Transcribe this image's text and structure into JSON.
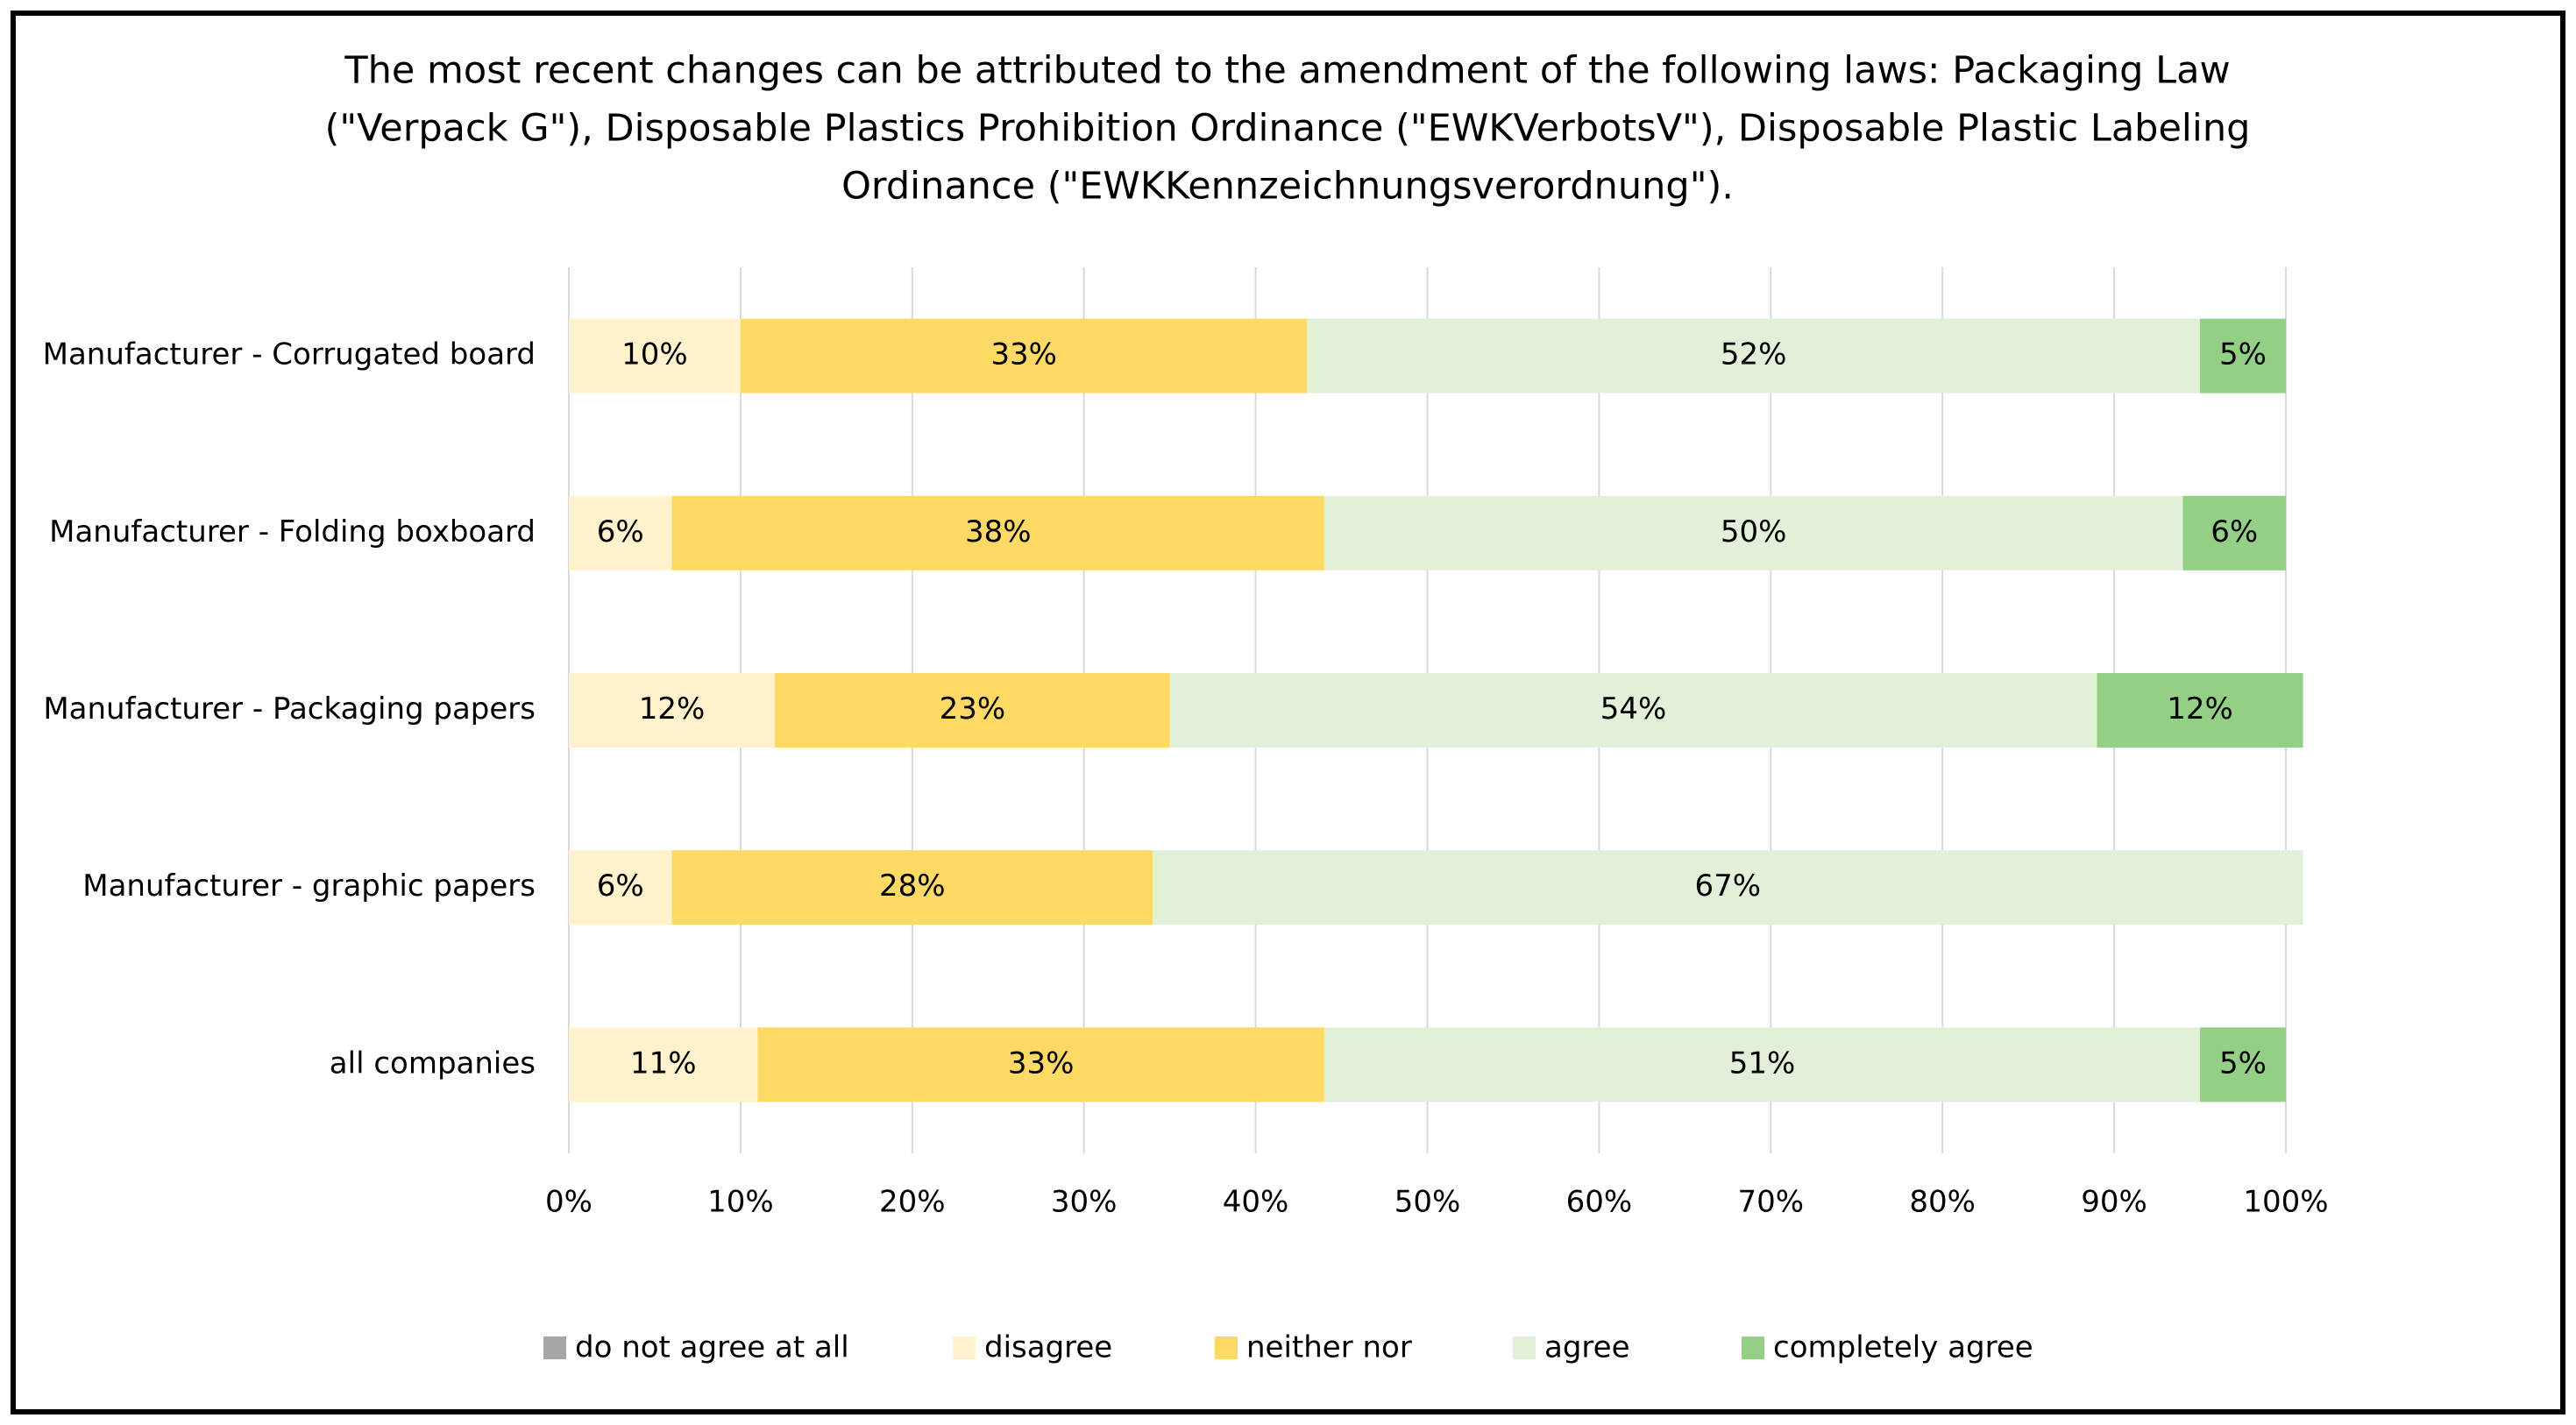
{
  "chart_data": {
    "type": "stacked-bar-horizontal",
    "title": [
      "The most recent changes can be attributed to the amendment of the following laws:  Packaging Law",
      "(\"Verpack G\"), Disposable Plastics Prohibition Ordinance (\"EWKVerbotsV\"), Disposable Plastic Labeling",
      "Ordinance (\"EWKKennzeichnungsverordnung\")."
    ],
    "categories": [
      "Manufacturer - Corrugated board",
      "Manufacturer - Folding boxboard",
      "Manufacturer - Packaging papers",
      "Manufacturer - graphic papers",
      "all companies"
    ],
    "series": [
      {
        "name": "do not agree at all",
        "color": "#a6a6a6",
        "values": [
          0,
          0,
          0,
          0,
          0
        ],
        "value_labels": [
          null,
          null,
          null,
          null,
          null
        ]
      },
      {
        "name": "disagree",
        "color": "#fff2cc",
        "values": [
          10,
          6,
          12,
          6,
          11
        ],
        "value_labels": [
          "10%",
          "6%",
          "12%",
          "6%",
          "11%"
        ]
      },
      {
        "name": "neither nor",
        "color": "#ffd966",
        "values": [
          33,
          38,
          23,
          28,
          33
        ],
        "value_labels": [
          "33%",
          "38%",
          "23%",
          "28%",
          "33%"
        ]
      },
      {
        "name": "agree",
        "color": "#e2f0d9",
        "values": [
          52,
          50,
          54,
          67,
          51
        ],
        "value_labels": [
          "52%",
          "50%",
          "54%",
          "67%",
          "51%"
        ]
      },
      {
        "name": "completely agree",
        "color": "#93d086",
        "values": [
          5,
          6,
          12,
          0,
          5
        ],
        "value_labels": [
          "5%",
          "6%",
          "12%",
          null,
          "5%"
        ]
      }
    ],
    "xlim": [
      0,
      100
    ],
    "xticks": [
      {
        "value": 0,
        "label": "0%"
      },
      {
        "value": 10,
        "label": "10%"
      },
      {
        "value": 20,
        "label": "20%"
      },
      {
        "value": 30,
        "label": "30%"
      },
      {
        "value": 40,
        "label": "40%"
      },
      {
        "value": 50,
        "label": "50%"
      },
      {
        "value": 60,
        "label": "60%"
      },
      {
        "value": 70,
        "label": "70%"
      },
      {
        "value": 80,
        "label": "80%"
      },
      {
        "value": 90,
        "label": "90%"
      },
      {
        "value": 100,
        "label": "100%"
      }
    ],
    "grid": true,
    "legend": "bottom"
  }
}
